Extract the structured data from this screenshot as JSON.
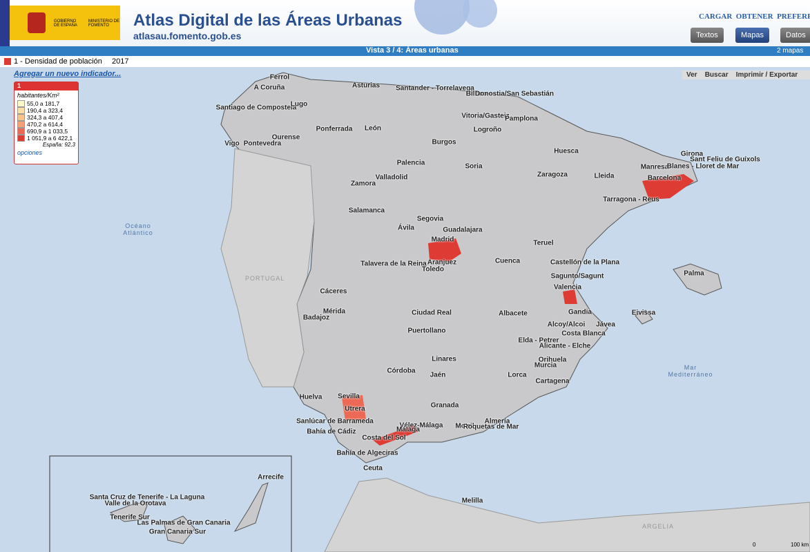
{
  "header": {
    "government": "GOBIERNO DE ESPAÑA",
    "ministry": "MINISTERIO DE FOMENTO",
    "title": "Atlas Digital de las Áreas Urbanas",
    "url": "atlasau.fomento.gob.es",
    "menu": [
      "CARGAR",
      "OBTENER",
      "PREFERENCIAS"
    ],
    "buttons": [
      "Textos",
      "Mapas",
      "Datos"
    ]
  },
  "view_bar": {
    "title": "Vista 3 / 4: Áreas urbanas",
    "maps": "2 mapas"
  },
  "indicator": {
    "name": "1 - Densidad de población",
    "year": "2017",
    "add": "Agregar un nuevo indicador..."
  },
  "legend": {
    "number": "1",
    "unit": "habitantes/Km²",
    "classes": [
      "55,0 a 181,7",
      "190,4 a 323,4",
      "324,3 a 407,4",
      "470,2 a 614,4",
      "690,9 a 1 033,5",
      "1 051,9 a 6 422,1"
    ],
    "colors": [
      "#fffbc8",
      "#fde0a6",
      "#fbc48c",
      "#f6a07a",
      "#ec6a55",
      "#dd3b33"
    ],
    "total": "España: 92,3",
    "options": "opciones"
  },
  "toolbar": [
    "Ver",
    "Buscar",
    "Imprimir / Exportar"
  ],
  "map": {
    "seas": [
      "Océano Atlántico",
      "PORTUGAL",
      "Mar Mediterráneo",
      "ARGELIA"
    ],
    "scale": [
      "0",
      "100 km"
    ],
    "cities": [
      "Ferrol",
      "A Coruña",
      "Asturias",
      "Santander - Torrelavega",
      "Bilbao",
      "Donostia/San Sebastián",
      "Santiago de Compostela",
      "Lugo",
      "Vitoria/Gasteiz",
      "Pamplona",
      "Ponferrada",
      "León",
      "Logroño",
      "Ourense",
      "Vigo",
      "Pontevedra",
      "Burgos",
      "Huesca",
      "Girona",
      "Sant Feliu de Guíxols",
      "Manresa",
      "Blanes - Lloret de Mar",
      "Palencia",
      "Soria",
      "Valladolid",
      "Zaragoza",
      "Lleida",
      "Barcelona",
      "Zamora",
      "Tarragona - Reus",
      "Salamanca",
      "Segovia",
      "Ávila",
      "Guadalajara",
      "Madrid",
      "Teruel",
      "Aranjuez",
      "Talavera de la Reina",
      "Cuenca",
      "Castellón de la Plana",
      "Toledo",
      "Palma",
      "Sagunto/Sagunt",
      "Valencia",
      "Cáceres",
      "Mérida",
      "Badajoz",
      "Ciudad Real",
      "Albacete",
      "Gandia",
      "Eivissa",
      "Alcoy/Alcoi",
      "Jávea",
      "Puertollano",
      "Costa Blanca",
      "Elda - Petrer",
      "Alicante - Elche",
      "Linares",
      "Orihuela",
      "Murcia",
      "Córdoba",
      "Jaén",
      "Lorca",
      "Cartagena",
      "Huelva",
      "Sevilla",
      "Utrera",
      "Granada",
      "Sanlúcar de Barrameda",
      "Vélez-Málaga",
      "Almería",
      "Málaga",
      "Motril",
      "Roquetas de Mar",
      "Bahía de Cádiz",
      "Costa del Sol",
      "Bahía de Algeciras",
      "Ceuta",
      "Melilla",
      "Arrecife",
      "Santa Cruz de Tenerife - La Laguna",
      "Valle de la Orotava",
      "Tenerife Sur",
      "Las Palmas de Gran Canaria",
      "Gran Canaria Sur"
    ]
  }
}
